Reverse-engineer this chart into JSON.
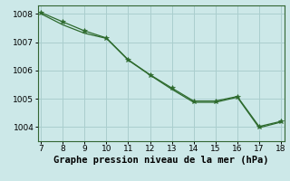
{
  "xlabel": "Graphe pression niveau de la mer (hPa)",
  "x_min": 7,
  "x_max": 18,
  "y_min": 1003.5,
  "y_max": 1008.3,
  "yticks": [
    1004,
    1005,
    1006,
    1007,
    1008
  ],
  "xticks": [
    7,
    8,
    9,
    10,
    11,
    12,
    13,
    14,
    15,
    16,
    17,
    18
  ],
  "line1_x": [
    7,
    8,
    9,
    10,
    11,
    12,
    13,
    14,
    15,
    16,
    17,
    18
  ],
  "line1_y": [
    1008.05,
    1007.72,
    1007.4,
    1007.15,
    1006.38,
    1005.85,
    1005.38,
    1004.92,
    1004.92,
    1005.08,
    1004.02,
    1004.2
  ],
  "line2_x": [
    7,
    8,
    9,
    10,
    11,
    12,
    13,
    14,
    15,
    16,
    17,
    18
  ],
  "line2_y": [
    1008.05,
    1007.66,
    1007.36,
    1007.18,
    1006.41,
    1005.88,
    1005.38,
    1004.92,
    1004.92,
    1005.1,
    1004.02,
    1004.22
  ],
  "line_color": "#2d6a2d",
  "bg_color": "#cce8e8",
  "grid_color": "#aacece",
  "marker": "*",
  "marker_size": 4,
  "line_width": 0.9,
  "xlabel_fontsize": 7.5,
  "tick_fontsize": 6.5
}
